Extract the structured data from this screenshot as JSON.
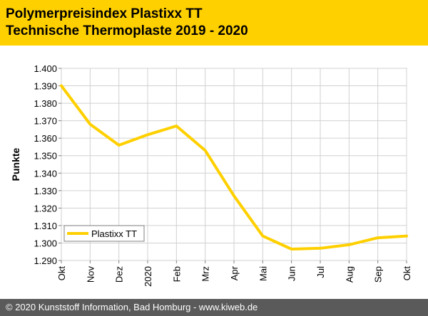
{
  "header": {
    "title_line1": "Polymerpreisindex Plastixx TT",
    "title_line2": "Technische Thermoplaste 2019 - 2020"
  },
  "footer": {
    "text": "© 2020 Kunststoff Information, Bad Homburg - www.kiweb.de"
  },
  "colors": {
    "accent": "#FFD000",
    "footer_bg": "#5a5a5a",
    "line": "#FFD000"
  },
  "chart_data": {
    "type": "line",
    "title": "",
    "xlabel": "",
    "ylabel": "Punkte",
    "categories": [
      "Okt",
      "Nov",
      "Dez",
      "2020",
      "Feb",
      "Mrz",
      "Apr",
      "Mai",
      "Jun",
      "Jul",
      "Aug",
      "Sep",
      "Okt"
    ],
    "ylim": [
      1.29,
      1.4
    ],
    "yticks": [
      "1.290",
      "1.300",
      "1.310",
      "1.320",
      "1.330",
      "1.340",
      "1.350",
      "1.360",
      "1.370",
      "1.380",
      "1.390",
      "1.400"
    ],
    "grid": true,
    "legend_position": "bottom-left",
    "series": [
      {
        "name": "Plastixx TT",
        "color": "#FFD000",
        "values": [
          1.39,
          1.368,
          1.356,
          1.362,
          1.367,
          1.353,
          1.327,
          1.304,
          1.2965,
          1.297,
          1.299,
          1.303,
          1.304
        ]
      }
    ]
  }
}
